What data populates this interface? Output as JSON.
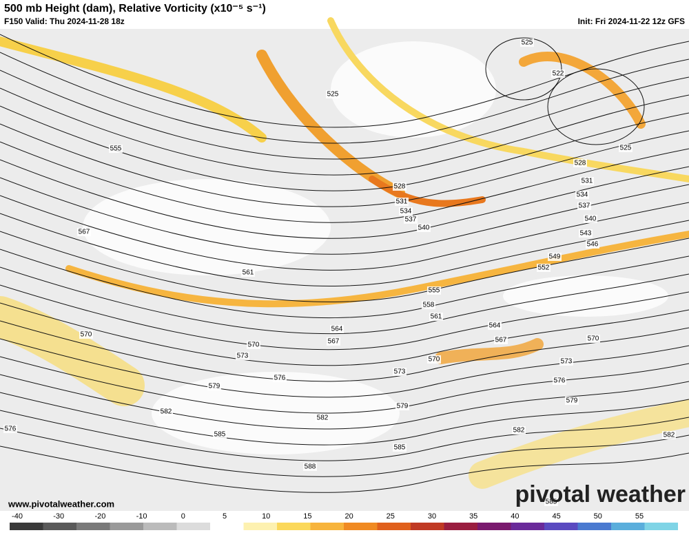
{
  "header": {
    "title": "500 mb Height (dam), Relative Vorticity (x10⁻⁵ s⁻¹)",
    "valid": "F150 Valid: Thu 2024-11-28 18z",
    "init": "Init: Fri 2024-11-22 12z GFS"
  },
  "map": {
    "contour_labels": [
      "525",
      "522",
      "525",
      "525",
      "555",
      "528",
      "528",
      "531",
      "531",
      "534",
      "534",
      "537",
      "537",
      "540",
      "540",
      "543",
      "546",
      "567",
      "549",
      "552",
      "561",
      "555",
      "558",
      "561",
      "564",
      "564",
      "567",
      "567",
      "570",
      "570",
      "570",
      "573",
      "570",
      "573",
      "573",
      "576",
      "576",
      "579",
      "579",
      "579",
      "582",
      "582",
      "582",
      "582",
      "576",
      "585",
      "585",
      "588",
      "585"
    ]
  },
  "footer": {
    "website": "www.pivotalweather.com",
    "logo": "pivotal weather"
  },
  "colorbar": {
    "ticks": [
      -40,
      -30,
      -20,
      -10,
      0,
      5,
      10,
      15,
      20,
      25,
      30,
      35,
      40,
      45,
      50,
      55
    ]
  }
}
